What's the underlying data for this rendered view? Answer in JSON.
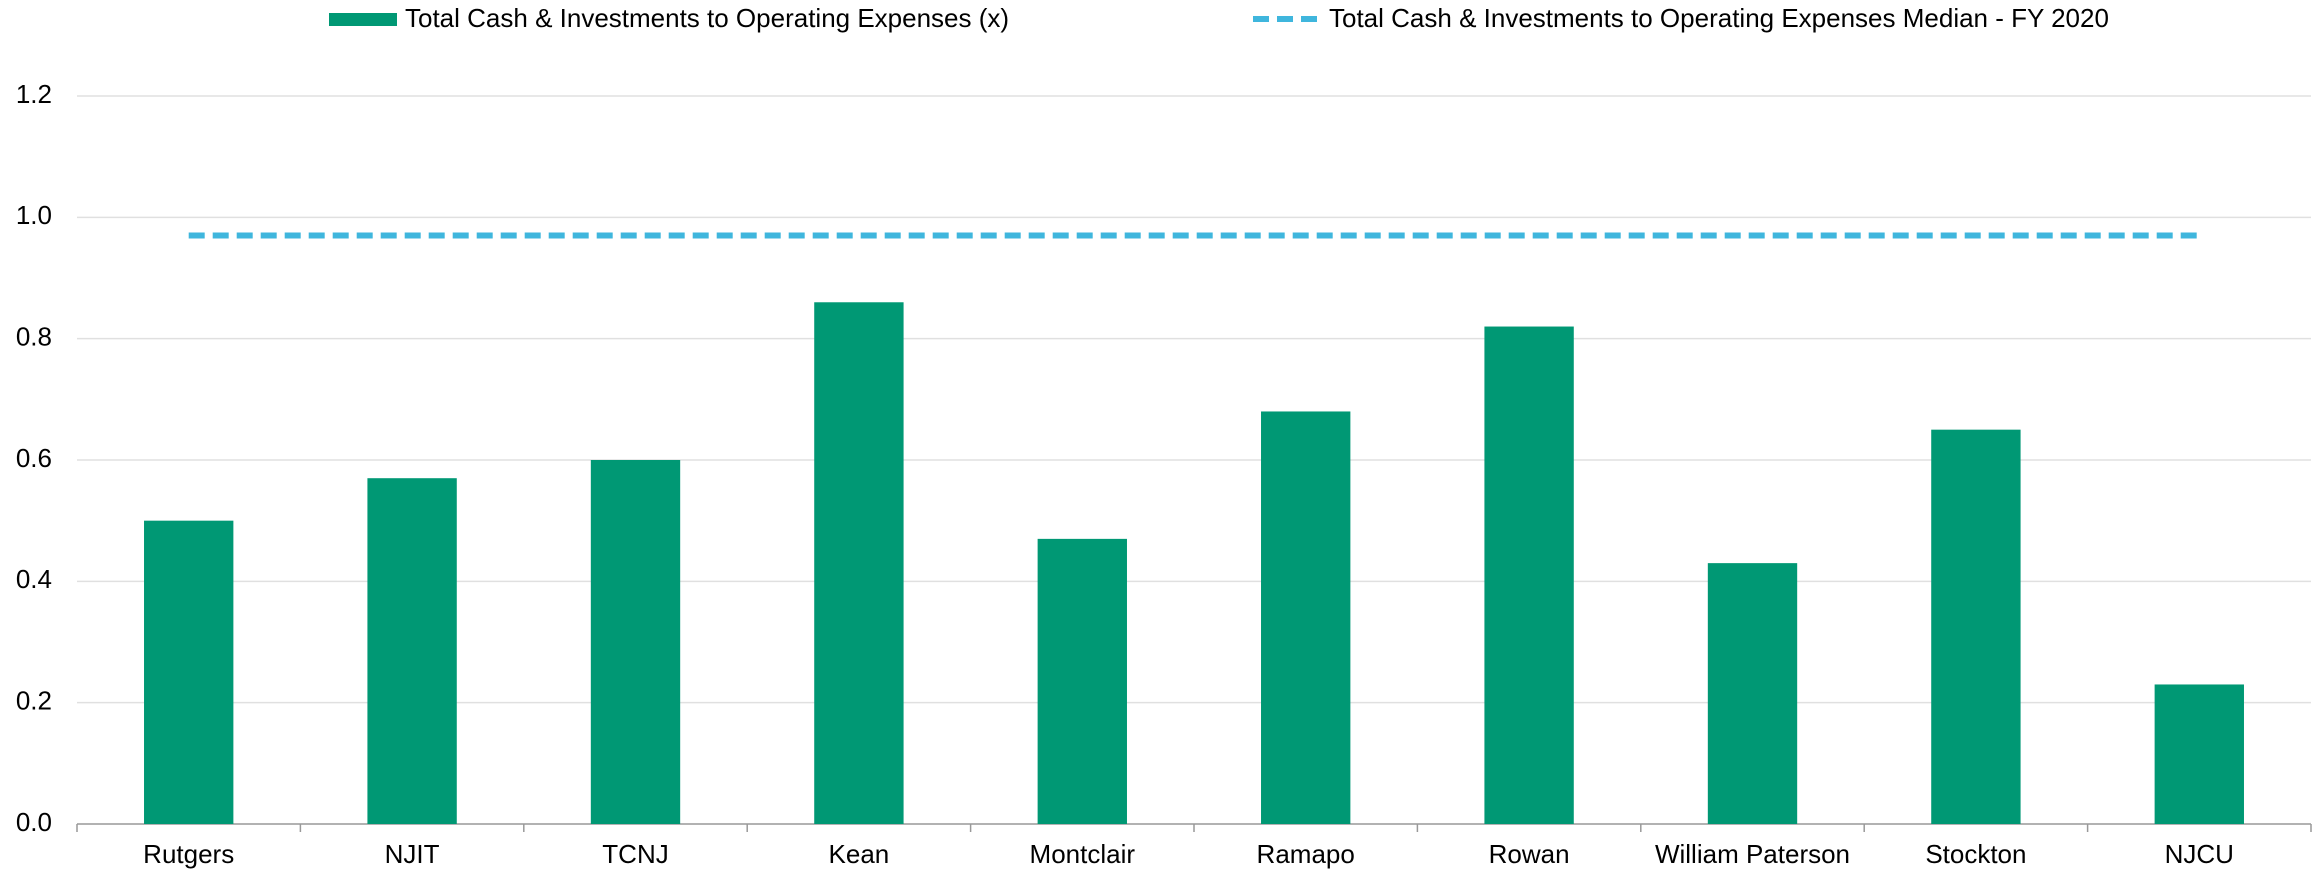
{
  "chart_data": {
    "type": "bar",
    "categories": [
      "Rutgers",
      "NJIT",
      "TCNJ",
      "Kean",
      "Montclair",
      "Ramapo",
      "Rowan",
      "William Paterson",
      "Stockton",
      "NJCU"
    ],
    "series": [
      {
        "name": "Total Cash & Investments to Operating Expenses (x)",
        "type": "bar",
        "color": "#009874",
        "values": [
          0.5,
          0.57,
          0.6,
          0.86,
          0.47,
          0.68,
          0.82,
          0.43,
          0.65,
          0.23
        ]
      },
      {
        "name": "Total Cash & Investments to Operating Expenses Median - FY 2020",
        "type": "line",
        "dashed": true,
        "color": "#3fb6dd",
        "values": [
          0.97,
          0.97,
          0.97,
          0.97,
          0.97,
          0.97,
          0.97,
          0.97,
          0.97,
          0.97
        ]
      }
    ],
    "ylim": [
      0,
      1.2
    ],
    "yticks": [
      {
        "value": 0,
        "label": "0.0"
      },
      0.2,
      0.4,
      0.6,
      0.8,
      {
        "value": 1,
        "label": "1.0"
      },
      1.2
    ],
    "grid": true,
    "legend": "top"
  }
}
